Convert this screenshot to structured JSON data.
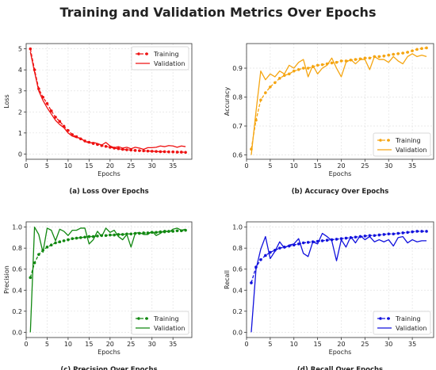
{
  "figure": {
    "title": "Training and Validation Metrics Over Epochs"
  },
  "chart_data": [
    {
      "type": "line",
      "caption": "(a) Loss Over Epochs",
      "xlabel": "Epochs",
      "ylabel": "Loss",
      "xlim": [
        0,
        39.5
      ],
      "ylim": [
        -0.25,
        5.25
      ],
      "xticks": [
        0,
        5,
        10,
        15,
        20,
        25,
        30,
        35
      ],
      "yticks": [
        0,
        1,
        2,
        3,
        4,
        5
      ],
      "tick_decimals": 0,
      "grid": true,
      "legend_position": "top-right",
      "color": "#ee1111",
      "x": [
        1,
        2,
        3,
        4,
        5,
        6,
        7,
        8,
        9,
        10,
        11,
        12,
        13,
        14,
        15,
        16,
        17,
        18,
        19,
        20,
        21,
        22,
        23,
        24,
        25,
        26,
        27,
        28,
        29,
        30,
        31,
        32,
        33,
        34,
        35,
        36,
        37,
        38
      ],
      "series": [
        {
          "name": "Training",
          "style": "dashed-marker",
          "values": [
            5.0,
            4.0,
            3.1,
            2.7,
            2.4,
            2.05,
            1.75,
            1.55,
            1.32,
            1.12,
            0.92,
            0.82,
            0.72,
            0.62,
            0.56,
            0.5,
            0.45,
            0.4,
            0.36,
            0.32,
            0.28,
            0.25,
            0.22,
            0.2,
            0.19,
            0.17,
            0.16,
            0.15,
            0.14,
            0.13,
            0.12,
            0.11,
            0.11,
            0.1,
            0.1,
            0.09,
            0.09,
            0.08
          ]
        },
        {
          "name": "Validation",
          "style": "solid",
          "values": [
            4.85,
            3.9,
            3.0,
            2.55,
            2.2,
            1.9,
            1.6,
            1.4,
            1.25,
            1.0,
            0.85,
            0.78,
            0.75,
            0.6,
            0.52,
            0.55,
            0.5,
            0.42,
            0.55,
            0.38,
            0.3,
            0.35,
            0.28,
            0.32,
            0.25,
            0.32,
            0.28,
            0.22,
            0.3,
            0.3,
            0.32,
            0.38,
            0.35,
            0.4,
            0.38,
            0.32,
            0.38,
            0.35
          ]
        }
      ]
    },
    {
      "type": "line",
      "caption": "(b) Accuracy Over Epochs",
      "xlabel": "Epochs",
      "ylabel": "Accuracy",
      "xlim": [
        0,
        39.5
      ],
      "ylim": [
        0.585,
        0.985
      ],
      "xticks": [
        0,
        5,
        10,
        15,
        20,
        25,
        30,
        35
      ],
      "yticks": [
        0.6,
        0.7,
        0.8,
        0.9
      ],
      "tick_decimals": 1,
      "grid": true,
      "legend_position": "bottom-right",
      "color": "#f5a511",
      "x": [
        1,
        2,
        3,
        4,
        5,
        6,
        7,
        8,
        9,
        10,
        11,
        12,
        13,
        14,
        15,
        16,
        17,
        18,
        19,
        20,
        21,
        22,
        23,
        24,
        25,
        26,
        27,
        28,
        29,
        30,
        31,
        32,
        33,
        34,
        35,
        36,
        37,
        38
      ],
      "series": [
        {
          "name": "Training",
          "style": "dashed-marker",
          "values": [
            0.62,
            0.72,
            0.79,
            0.815,
            0.835,
            0.85,
            0.865,
            0.875,
            0.88,
            0.89,
            0.895,
            0.9,
            0.9,
            0.905,
            0.91,
            0.912,
            0.915,
            0.918,
            0.92,
            0.925,
            0.925,
            0.928,
            0.93,
            0.932,
            0.935,
            0.935,
            0.94,
            0.94,
            0.942,
            0.945,
            0.948,
            0.95,
            0.952,
            0.955,
            0.96,
            0.965,
            0.968,
            0.97
          ]
        },
        {
          "name": "Validation",
          "style": "solid",
          "values": [
            0.6,
            0.75,
            0.89,
            0.86,
            0.88,
            0.87,
            0.89,
            0.88,
            0.91,
            0.9,
            0.92,
            0.93,
            0.87,
            0.91,
            0.88,
            0.9,
            0.91,
            0.935,
            0.9,
            0.87,
            0.92,
            0.93,
            0.915,
            0.93,
            0.93,
            0.895,
            0.94,
            0.93,
            0.93,
            0.92,
            0.94,
            0.925,
            0.915,
            0.94,
            0.95,
            0.94,
            0.945,
            0.94
          ]
        }
      ]
    },
    {
      "type": "line",
      "caption": "(c) Precision Over Epochs",
      "xlabel": "Epochs",
      "ylabel": "Precision",
      "xlim": [
        0,
        39.5
      ],
      "ylim": [
        -0.05,
        1.05
      ],
      "xticks": [
        0,
        5,
        10,
        15,
        20,
        25,
        30,
        35
      ],
      "yticks": [
        0.0,
        0.2,
        0.4,
        0.6,
        0.8,
        1.0
      ],
      "tick_decimals": 1,
      "grid": true,
      "legend_position": "bottom-right",
      "color": "#118811",
      "x": [
        1,
        2,
        3,
        4,
        5,
        6,
        7,
        8,
        9,
        10,
        11,
        12,
        13,
        14,
        15,
        16,
        17,
        18,
        19,
        20,
        21,
        22,
        23,
        24,
        25,
        26,
        27,
        28,
        29,
        30,
        31,
        32,
        33,
        34,
        35,
        36,
        37,
        38
      ],
      "series": [
        {
          "name": "Training",
          "style": "dashed-marker",
          "values": [
            0.52,
            0.66,
            0.74,
            0.78,
            0.81,
            0.83,
            0.85,
            0.86,
            0.87,
            0.88,
            0.89,
            0.895,
            0.9,
            0.905,
            0.91,
            0.91,
            0.915,
            0.92,
            0.92,
            0.925,
            0.925,
            0.93,
            0.93,
            0.935,
            0.935,
            0.94,
            0.94,
            0.945,
            0.945,
            0.95,
            0.95,
            0.955,
            0.955,
            0.96,
            0.96,
            0.965,
            0.965,
            0.97
          ]
        },
        {
          "name": "Validation",
          "style": "solid",
          "values": [
            0.0,
            1.0,
            0.93,
            0.76,
            0.99,
            0.97,
            0.87,
            0.98,
            0.96,
            0.92,
            0.97,
            0.97,
            0.99,
            0.99,
            0.84,
            0.88,
            0.96,
            0.91,
            0.99,
            0.95,
            0.97,
            0.91,
            0.88,
            0.93,
            0.81,
            0.94,
            0.95,
            0.93,
            0.93,
            0.96,
            0.92,
            0.94,
            0.97,
            0.95,
            0.98,
            0.99,
            0.97,
            0.98
          ]
        }
      ]
    },
    {
      "type": "line",
      "caption": "(d) Recall Over Epochs",
      "xlabel": "Epochs",
      "ylabel": "Recall",
      "xlim": [
        0,
        39.5
      ],
      "ylim": [
        -0.05,
        1.05
      ],
      "xticks": [
        0,
        5,
        10,
        15,
        20,
        25,
        30,
        35
      ],
      "yticks": [
        0.0,
        0.2,
        0.4,
        0.6,
        0.8,
        1.0
      ],
      "tick_decimals": 1,
      "grid": true,
      "legend_position": "bottom-right",
      "color": "#1111dd",
      "x": [
        1,
        2,
        3,
        4,
        5,
        6,
        7,
        8,
        9,
        10,
        11,
        12,
        13,
        14,
        15,
        16,
        17,
        18,
        19,
        20,
        21,
        22,
        23,
        24,
        25,
        26,
        27,
        28,
        29,
        30,
        31,
        32,
        33,
        34,
        35,
        36,
        37,
        38
      ],
      "series": [
        {
          "name": "Training",
          "style": "dashed-marker",
          "values": [
            0.47,
            0.62,
            0.69,
            0.73,
            0.76,
            0.78,
            0.8,
            0.81,
            0.82,
            0.83,
            0.84,
            0.85,
            0.855,
            0.86,
            0.865,
            0.87,
            0.875,
            0.88,
            0.885,
            0.89,
            0.895,
            0.9,
            0.905,
            0.91,
            0.915,
            0.92,
            0.92,
            0.925,
            0.93,
            0.935,
            0.935,
            0.94,
            0.945,
            0.95,
            0.955,
            0.96,
            0.96,
            0.96
          ]
        },
        {
          "name": "Validation",
          "style": "solid",
          "values": [
            0.0,
            0.6,
            0.79,
            0.91,
            0.7,
            0.77,
            0.86,
            0.8,
            0.83,
            0.84,
            0.89,
            0.75,
            0.72,
            0.86,
            0.84,
            0.94,
            0.91,
            0.87,
            0.68,
            0.88,
            0.81,
            0.91,
            0.85,
            0.92,
            0.88,
            0.91,
            0.86,
            0.88,
            0.86,
            0.88,
            0.82,
            0.9,
            0.91,
            0.85,
            0.88,
            0.86,
            0.87,
            0.87
          ]
        }
      ]
    }
  ]
}
